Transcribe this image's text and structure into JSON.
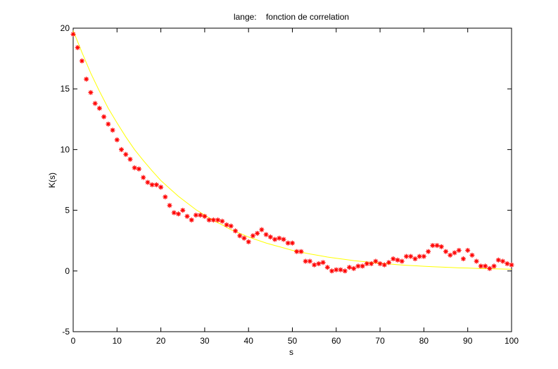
{
  "chart_data": {
    "type": "scatter",
    "title": "lange:    fonction de correlation",
    "xlabel": "s",
    "ylabel": "K(s)",
    "xlim": [
      0,
      100
    ],
    "ylim": [
      -5,
      20
    ],
    "xticks": [
      0,
      10,
      20,
      30,
      40,
      50,
      60,
      70,
      80,
      90,
      100
    ],
    "yticks": [
      -5,
      0,
      5,
      10,
      15,
      20
    ],
    "grid": false,
    "series": [
      {
        "type": "scatter",
        "marker": "*",
        "color": "#ff0000",
        "x": [
          0,
          1,
          2,
          3,
          4,
          5,
          6,
          7,
          8,
          9,
          10,
          11,
          12,
          13,
          14,
          15,
          16,
          17,
          18,
          19,
          20,
          21,
          22,
          23,
          24,
          25,
          26,
          27,
          28,
          29,
          30,
          31,
          32,
          33,
          34,
          35,
          36,
          37,
          38,
          39,
          40,
          41,
          42,
          43,
          44,
          45,
          46,
          47,
          48,
          49,
          50,
          51,
          52,
          53,
          54,
          55,
          56,
          57,
          58,
          59,
          60,
          61,
          62,
          63,
          64,
          65,
          66,
          67,
          68,
          69,
          70,
          71,
          72,
          73,
          74,
          75,
          76,
          77,
          78,
          79,
          80,
          81,
          82,
          83,
          84,
          85,
          86,
          87,
          88,
          89,
          90,
          91,
          92,
          93,
          94,
          95,
          96,
          97,
          98,
          99,
          100
        ],
        "y": [
          19.5,
          18.4,
          17.3,
          15.8,
          14.7,
          13.8,
          13.4,
          12.7,
          12.1,
          11.6,
          10.8,
          10.0,
          9.6,
          9.2,
          8.5,
          8.4,
          7.7,
          7.3,
          7.1,
          7.1,
          6.9,
          6.1,
          5.4,
          4.8,
          4.7,
          5.0,
          4.5,
          4.2,
          4.6,
          4.6,
          4.5,
          4.2,
          4.2,
          4.2,
          4.1,
          3.8,
          3.7,
          3.3,
          2.9,
          2.7,
          2.4,
          2.9,
          3.1,
          3.4,
          3.0,
          2.8,
          2.6,
          2.7,
          2.6,
          2.3,
          2.3,
          1.6,
          1.6,
          0.8,
          0.8,
          0.5,
          0.6,
          0.7,
          0.3,
          0.0,
          0.1,
          0.1,
          0.0,
          0.3,
          0.2,
          0.4,
          0.4,
          0.6,
          0.6,
          0.8,
          0.6,
          0.5,
          0.7,
          1.0,
          0.9,
          0.8,
          1.2,
          1.2,
          1.0,
          1.2,
          1.2,
          1.6,
          2.1,
          2.1,
          2.0,
          1.6,
          1.3,
          1.5,
          1.7,
          1.0,
          1.7,
          1.3,
          0.8,
          0.4,
          0.4,
          0.2,
          0.4,
          0.9,
          0.8,
          0.6,
          0.5
        ]
      },
      {
        "type": "line",
        "color": "#ffff00",
        "x": [
          0,
          2,
          4,
          6,
          8,
          10,
          12,
          14,
          16,
          18,
          20,
          22,
          24,
          26,
          28,
          30,
          32,
          34,
          36,
          38,
          40,
          42,
          44,
          46,
          48,
          50,
          52,
          54,
          56,
          58,
          60,
          62,
          64,
          66,
          68,
          70,
          72,
          74,
          76,
          78,
          80,
          82,
          84,
          86,
          88,
          90,
          92,
          94,
          96,
          98,
          100
        ],
        "y": [
          19.8,
          18.0,
          16.3,
          14.8,
          13.4,
          12.2,
          11.05,
          10.0,
          9.1,
          8.25,
          7.45,
          6.8,
          6.15,
          5.6,
          5.05,
          4.6,
          4.15,
          3.8,
          3.4,
          3.1,
          2.8,
          2.55,
          2.3,
          2.1,
          1.9,
          1.7,
          1.55,
          1.4,
          1.28,
          1.15,
          1.05,
          0.95,
          0.85,
          0.78,
          0.7,
          0.63,
          0.58,
          0.52,
          0.47,
          0.43,
          0.39,
          0.35,
          0.32,
          0.29,
          0.26,
          0.24,
          0.21,
          0.19,
          0.18,
          0.16,
          0.14
        ]
      }
    ]
  }
}
